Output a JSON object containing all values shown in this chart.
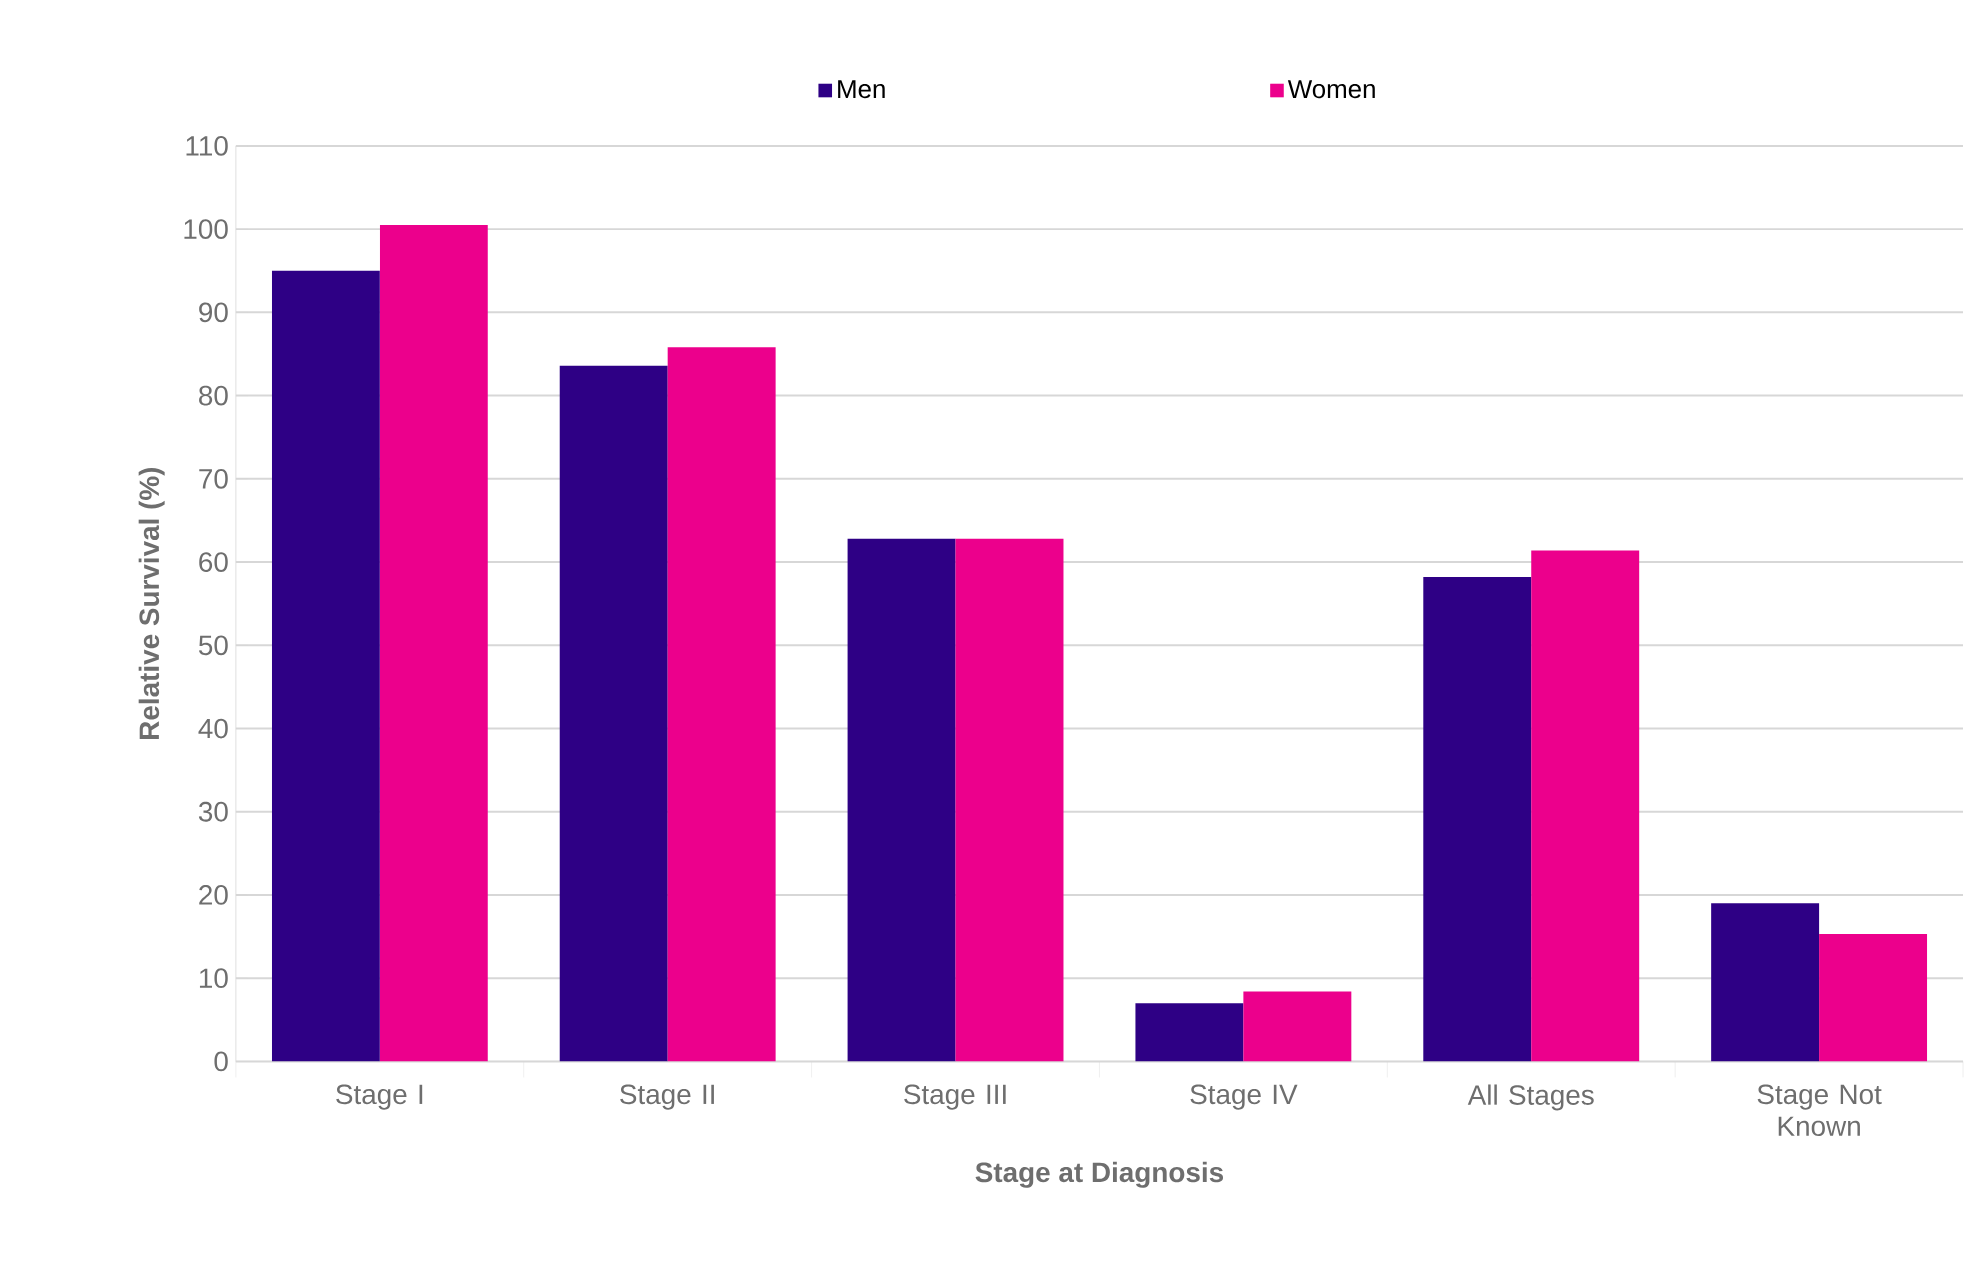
{
  "chart_data": {
    "type": "bar",
    "xlabel": "Stage at Diagnosis",
    "ylabel": "Relative Survival (%)",
    "categories": [
      "Stage I",
      "Stage II",
      "Stage III",
      "Stage IV",
      "All Stages",
      "Stage Not Known"
    ],
    "series": [
      {
        "name": "Men",
        "color": "#2e0085",
        "values": [
          95,
          83.6,
          62.8,
          7,
          58.2,
          19
        ]
      },
      {
        "name": "Women",
        "color": "#ec008c",
        "values": [
          100.5,
          85.8,
          62.8,
          8.4,
          61.4,
          15.3
        ]
      }
    ],
    "ylim": [
      0,
      110
    ],
    "yticks": [
      0,
      10,
      20,
      30,
      40,
      50,
      60,
      70,
      80,
      90,
      100,
      110
    ],
    "grid": "y",
    "legend": "top"
  }
}
